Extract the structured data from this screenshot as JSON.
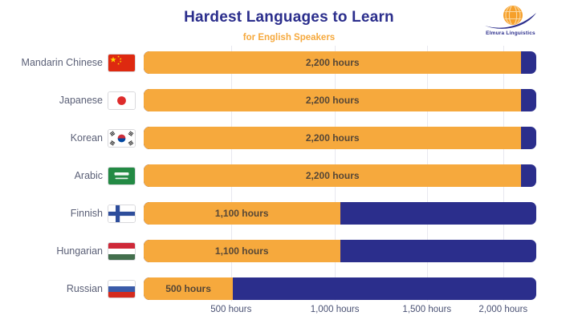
{
  "header": {
    "title": "Hardest Languages to Learn",
    "subtitle": "for English Speakers"
  },
  "logo": {
    "name": "Elmura Linguistics"
  },
  "colors": {
    "bar_orange": "#F6A93D",
    "bar_navy": "#2B2E8C",
    "title_navy": "#2B2E8C",
    "subtitle_orange": "#F6A93D",
    "row_label": "#5B6077",
    "bar_value_text": "#554636",
    "axis_label": "#4A5173",
    "gridline": "#E8E8EF",
    "background": "#FFFFFF"
  },
  "chart_data": {
    "type": "bar",
    "orientation": "horizontal",
    "title": "Hardest Languages to Learn",
    "subtitle": "for English Speakers",
    "unit": "hours",
    "categories": [
      "Mandarin Chinese",
      "Japanese",
      "Korean",
      "Arabic",
      "Finnish",
      "Hungarian",
      "Russian"
    ],
    "values": [
      2200,
      2200,
      2200,
      2200,
      1100,
      1100,
      500
    ],
    "bar_labels": [
      "2,200 hours",
      "2,200 hours",
      "2,200 hours",
      "2,200 hours",
      "1,100 hours",
      "1,100 hours",
      "500 hours"
    ],
    "flags": [
      "china",
      "japan",
      "south-korea",
      "saudi-arabia",
      "finland",
      "hungary",
      "russia"
    ],
    "xlim": [
      0,
      2200
    ],
    "x_ticks": [
      500,
      1000,
      1500,
      2000
    ],
    "x_tick_labels": [
      "500 hours",
      "1,000 hours",
      "1,500 hours",
      "2,000 hours"
    ],
    "x_tick_pos_pct": [
      22.4,
      48.8,
      72.2,
      91.6
    ],
    "track_full_hours": 2200,
    "full_bar_cap_pct": 96.2,
    "grid": true,
    "legend": false
  }
}
